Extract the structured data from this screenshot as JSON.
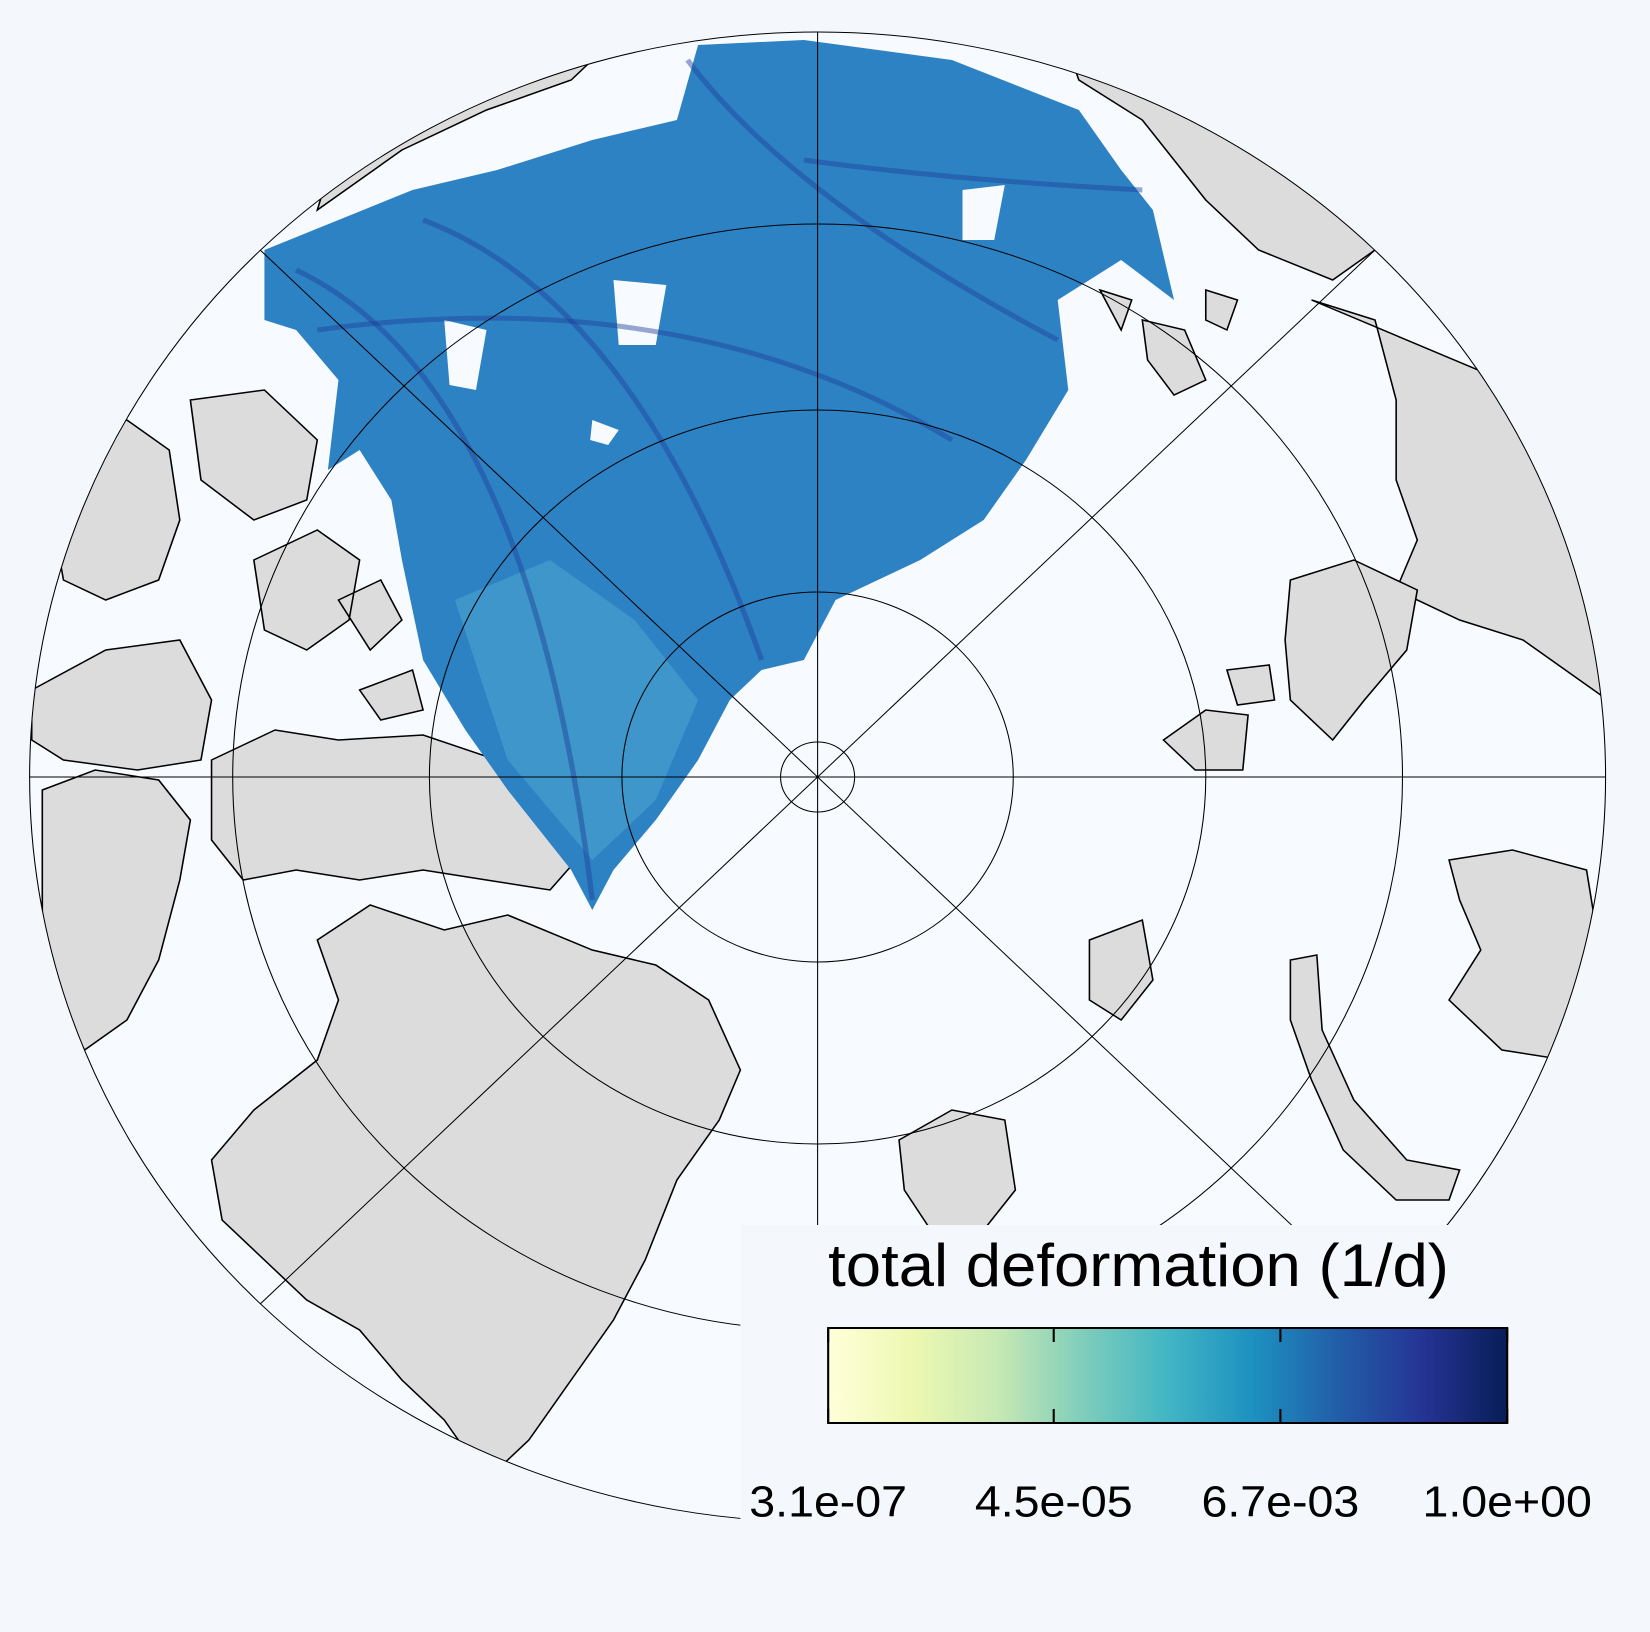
{
  "colorbar": {
    "label": "total deformation (1/d)",
    "scale": "log",
    "lim": [
      3.1e-07,
      1.0
    ],
    "ticks": [
      {
        "value": 3.1e-07,
        "label": "3.1e-07"
      },
      {
        "value": 4.5e-05,
        "label": "4.5e-05"
      },
      {
        "value": 0.0067,
        "label": "6.7e-03"
      },
      {
        "value": 1.0,
        "label": "1.0e+00"
      }
    ],
    "colors": [
      "#ffffd9",
      "#edf8b1",
      "#c7e9b4",
      "#7fcdbb",
      "#41b6c4",
      "#1d91c0",
      "#225ea8",
      "#253494",
      "#081d58"
    ]
  }
}
